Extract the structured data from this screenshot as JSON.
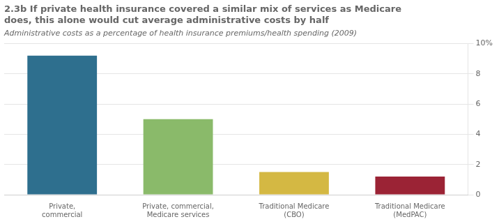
{
  "chart_data": {
    "type": "bar",
    "title": [
      "2.3b If private health insurance covered a similar mix of services as Medicare",
      "does, this alone would cut average administrative costs by half"
    ],
    "subtitle": "Administrative costs as a percentage of health insurance premiums/health spending (2009)",
    "categories": [
      "Private,\ncommercial",
      "Private, commercial,\nMedicare services",
      "Traditional Medicare\n(CBO)",
      "Traditional Medicare\n(MedPAC)"
    ],
    "values": [
      9.2,
      5.0,
      1.5,
      1.2
    ],
    "colors": [
      "#2e6f8e",
      "#8aba6a",
      "#d4b843",
      "#9b2335"
    ],
    "ylim": [
      0,
      10
    ],
    "yticks": [
      0,
      2,
      4,
      6,
      8,
      {
        "value": 10,
        "label": "10%"
      }
    ],
    "grid": true
  }
}
